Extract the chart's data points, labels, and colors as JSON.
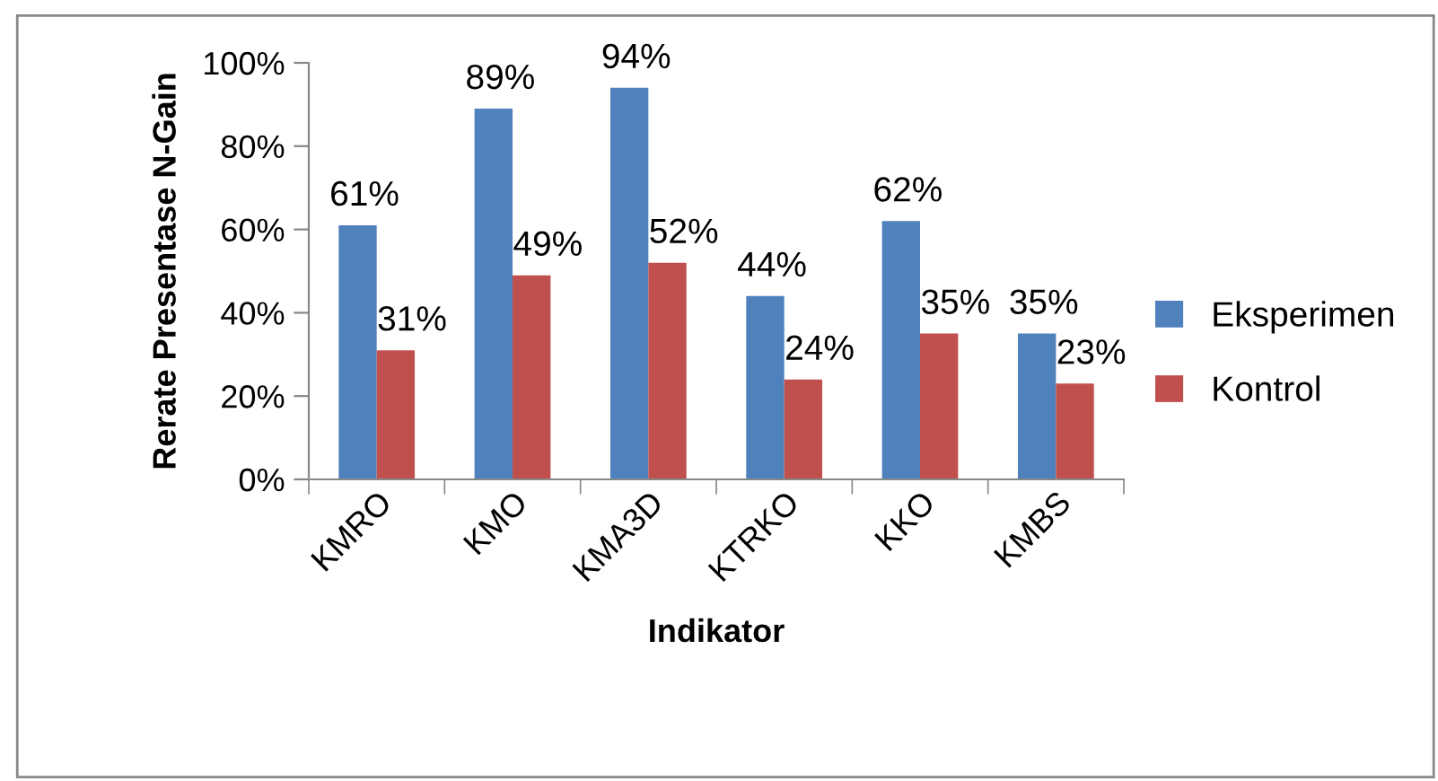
{
  "chart_data": {
    "type": "bar",
    "xlabel": "Indikator",
    "ylabel": "Rerate Presentase N-Gain",
    "categories": [
      "KMRO",
      "KMO",
      "KMA3D",
      "KTRKO",
      "KKO",
      "KMBS"
    ],
    "series": [
      {
        "name": "Eksperimen",
        "color": "#4f81bd",
        "values": [
          61,
          89,
          94,
          44,
          62,
          35
        ],
        "value_labels": [
          "61%",
          "89%",
          "94%",
          "44%",
          "62%",
          "35%"
        ]
      },
      {
        "name": "Kontrol",
        "color": "#c0504d",
        "values": [
          31,
          49,
          52,
          24,
          35,
          23
        ],
        "value_labels": [
          "31%",
          "49%",
          "52%",
          "24%",
          "35%",
          "23%"
        ]
      }
    ],
    "ylim": [
      0,
      100
    ],
    "yticks": [
      {
        "value": 0,
        "label": "0%"
      },
      {
        "value": 20,
        "label": "20%"
      },
      {
        "value": 40,
        "label": "40%"
      },
      {
        "value": 60,
        "label": "60%"
      },
      {
        "value": 80,
        "label": "80%"
      },
      {
        "value": 100,
        "label": "100%"
      }
    ],
    "grid": false,
    "legend": "right"
  }
}
